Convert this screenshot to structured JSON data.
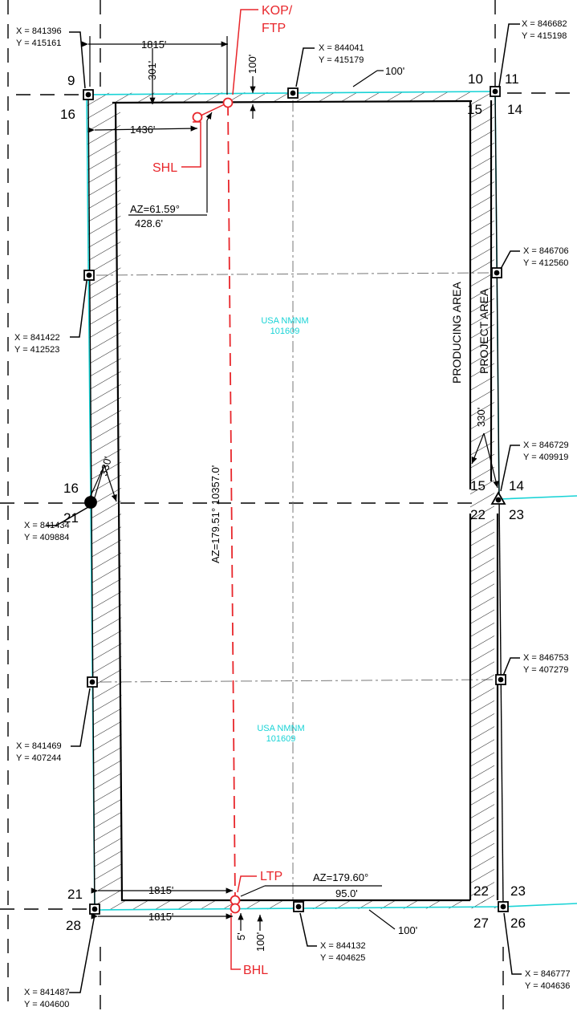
{
  "kop_label": "KOP/",
  "ftp_label": "FTP",
  "shl_label": "SHL",
  "ltp_label": "LTP",
  "bhl_label": "BHL",
  "lease_top": "USA NMNM",
  "lease_top_num": "101609",
  "lease_bottom": "USA NMNM",
  "lease_bottom_num": "101609",
  "producing_area": "PRODUCING AREA",
  "project_area": "PROJECT AREA",
  "well_azimuth": "AZ=179.51° 10357.0'",
  "shl_azimuth": "AZ=61.59°",
  "shl_distance": "428.6'",
  "bhl_azimuth": "AZ=179.60°",
  "bhl_distance": "95.0'",
  "dims": {
    "top_1815": "1815'",
    "d301": "301'",
    "d100_top": "100'",
    "d100_diag_top": "100'",
    "d1436": "1436'",
    "d330_right": "330'",
    "d330_left": "330'",
    "bottom_1815_a": "1815'",
    "bottom_1815_b": "1815'",
    "d5": "5'",
    "d100_bottom": "100'",
    "d100_diag_bottom": "100'"
  },
  "section_numbers": {
    "n9": "9",
    "n16a": "16",
    "n10": "10",
    "n11": "11",
    "n15a": "15",
    "n14a": "14",
    "n16b": "16",
    "n21a": "21",
    "n15b": "15",
    "n14b": "14",
    "n22a": "22",
    "n23a": "23",
    "n21b": "21",
    "n28": "28",
    "n22b": "22",
    "n23b": "23",
    "n27": "27",
    "n26": "26"
  },
  "coords": {
    "c1x": "X = 841396",
    "c1y": "Y = 415161",
    "c2x": "X = 844041",
    "c2y": "Y = 415179",
    "c3x": "X = 846682",
    "c3y": "Y = 415198",
    "c4x": "X = 846706",
    "c4y": "Y = 412560",
    "c5x": "X = 841422",
    "c5y": "Y = 412523",
    "c6x": "X = 846729",
    "c6y": "Y = 409919",
    "c7x": "X = 841434",
    "c7y": "Y = 409884",
    "c8x": "X = 846753",
    "c8y": "Y = 407279",
    "c9x": "X = 841469",
    "c9y": "Y = 407244",
    "c10x": "X = 844132",
    "c10y": "Y = 404625",
    "c11x": "X = 846777",
    "c11y": "Y = 404636",
    "c12x": "X = 841487",
    "c12y": "Y = 404600"
  },
  "colors": {
    "well": "#e8262b",
    "lease": "#19d3d6"
  }
}
